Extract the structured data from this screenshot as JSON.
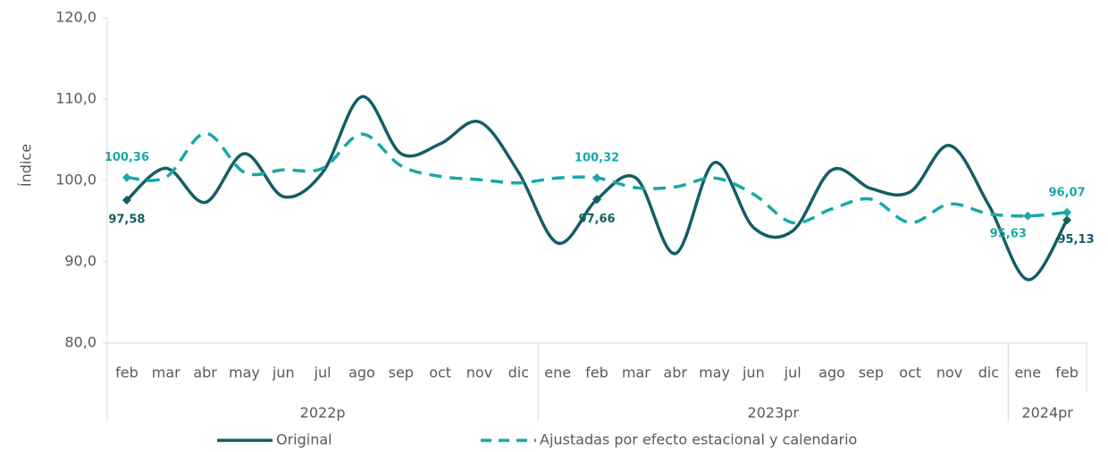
{
  "chart_data": {
    "type": "line",
    "y_label": "Índice",
    "categories": [
      "feb",
      "mar",
      "abr",
      "may",
      "jun",
      "jul",
      "ago",
      "sep",
      "oct",
      "nov",
      "dic",
      "ene",
      "feb",
      "mar",
      "abr",
      "may",
      "jun",
      "jul",
      "ago",
      "sep",
      "oct",
      "nov",
      "dic",
      "ene",
      "feb"
    ],
    "groups": [
      {
        "name": "2022p",
        "start": 0,
        "end": 10
      },
      {
        "name": "2023pr",
        "start": 11,
        "end": 22
      },
      {
        "name": "2024pr",
        "start": 23,
        "end": 24
      }
    ],
    "series": [
      {
        "name": "Original",
        "color": "#135e66",
        "dash": false,
        "values": [
          97.58,
          101.5,
          97.3,
          103.3,
          98.0,
          101.0,
          110.3,
          103.3,
          104.5,
          107.2,
          101.0,
          92.3,
          97.66,
          100.3,
          91.0,
          102.2,
          94.2,
          93.8,
          101.3,
          99.0,
          98.6,
          104.3,
          97.0,
          87.8,
          95.13
        ],
        "value_labels": [
          "97,58",
          null,
          null,
          null,
          null,
          null,
          null,
          null,
          null,
          null,
          null,
          null,
          "97,66",
          null,
          null,
          null,
          null,
          null,
          null,
          null,
          null,
          null,
          null,
          null,
          "95,13"
        ]
      },
      {
        "name": "Ajustadas por efecto estacional y calendario",
        "color": "#17a8a8",
        "dash": true,
        "values": [
          100.36,
          100.4,
          105.8,
          101.0,
          101.3,
          101.5,
          105.7,
          101.8,
          100.5,
          100.1,
          99.7,
          100.3,
          100.32,
          99.1,
          99.2,
          100.3,
          98.3,
          94.8,
          96.5,
          97.7,
          94.8,
          97.1,
          95.9,
          95.63,
          96.07
        ],
        "value_labels": [
          "100,36",
          null,
          null,
          null,
          null,
          null,
          null,
          null,
          null,
          null,
          null,
          null,
          "100,32",
          null,
          null,
          null,
          null,
          null,
          null,
          null,
          null,
          null,
          null,
          "95,63",
          "96,07"
        ]
      }
    ],
    "ylim": [
      80,
      120
    ],
    "yticks": [
      {
        "value": 80,
        "label": "80,0"
      },
      {
        "value": 90,
        "label": "90,0"
      },
      {
        "value": 100,
        "label": "100,0"
      },
      {
        "value": 110,
        "label": "110,0"
      },
      {
        "value": 120,
        "label": "120,0"
      }
    ],
    "grid": false
  }
}
